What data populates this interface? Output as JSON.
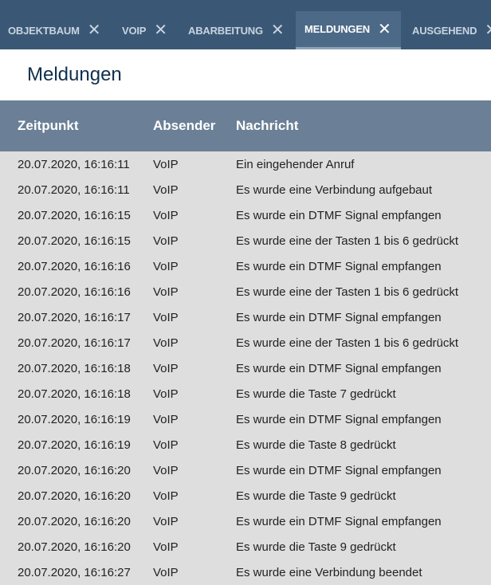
{
  "tabs": [
    {
      "label": "OBJEKTBAUM",
      "active": false
    },
    {
      "label": "VOIP",
      "active": false
    },
    {
      "label": "ABARBEITUNG",
      "active": false
    },
    {
      "label": "MELDUNGEN",
      "active": true
    },
    {
      "label": "AUSGEHEND",
      "active": false
    }
  ],
  "close_glyph": "✕",
  "page_title": "Meldungen",
  "columns": [
    "Zeitpunkt",
    "Absender",
    "Nachricht"
  ],
  "rows": [
    [
      "20.07.2020, 16:16:11",
      "VoIP",
      "Ein eingehender Anruf"
    ],
    [
      "20.07.2020, 16:16:11",
      "VoIP",
      "Es wurde eine Verbindung aufgebaut"
    ],
    [
      "20.07.2020, 16:16:15",
      "VoIP",
      "Es wurde ein DTMF Signal empfangen"
    ],
    [
      "20.07.2020, 16:16:15",
      "VoIP",
      "Es wurde eine der Tasten 1 bis 6 gedrückt"
    ],
    [
      "20.07.2020, 16:16:16",
      "VoIP",
      "Es wurde ein DTMF Signal empfangen"
    ],
    [
      "20.07.2020, 16:16:16",
      "VoIP",
      "Es wurde eine der Tasten 1 bis 6 gedrückt"
    ],
    [
      "20.07.2020, 16:16:17",
      "VoIP",
      "Es wurde ein DTMF Signal empfangen"
    ],
    [
      "20.07.2020, 16:16:17",
      "VoIP",
      "Es wurde eine der Tasten 1 bis 6 gedrückt"
    ],
    [
      "20.07.2020, 16:16:18",
      "VoIP",
      "Es wurde ein DTMF Signal empfangen"
    ],
    [
      "20.07.2020, 16:16:18",
      "VoIP",
      "Es wurde die Taste 7 gedrückt"
    ],
    [
      "20.07.2020, 16:16:19",
      "VoIP",
      "Es wurde ein DTMF Signal empfangen"
    ],
    [
      "20.07.2020, 16:16:19",
      "VoIP",
      "Es wurde die Taste 8 gedrückt"
    ],
    [
      "20.07.2020, 16:16:20",
      "VoIP",
      "Es wurde ein DTMF Signal empfangen"
    ],
    [
      "20.07.2020, 16:16:20",
      "VoIP",
      "Es wurde die Taste 9 gedrückt"
    ],
    [
      "20.07.2020, 16:16:20",
      "VoIP",
      "Es wurde ein DTMF Signal empfangen"
    ],
    [
      "20.07.2020, 16:16:20",
      "VoIP",
      "Es wurde die Taste 9 gedrückt"
    ],
    [
      "20.07.2020, 16:16:27",
      "VoIP",
      "Es wurde eine Verbindung beendet"
    ]
  ]
}
